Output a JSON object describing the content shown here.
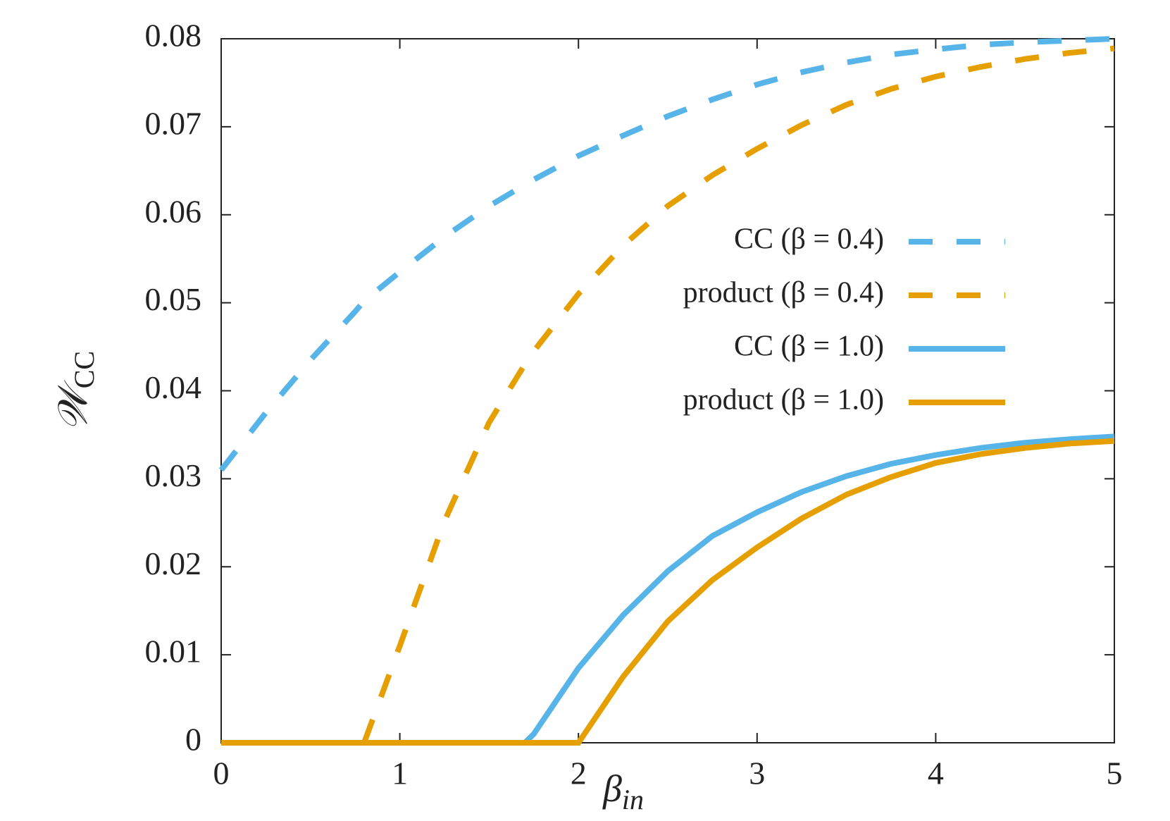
{
  "chart_data": {
    "type": "line",
    "xlabel": {
      "base": "β",
      "sub": "in"
    },
    "ylabel": {
      "base": "𝒲",
      "sub": "CC"
    },
    "x": [
      0,
      0.25,
      0.5,
      0.75,
      0.8,
      1,
      1.25,
      1.5,
      1.7,
      1.75,
      2,
      2.25,
      2.5,
      2.75,
      3,
      3.25,
      3.5,
      3.75,
      4,
      4.25,
      4.5,
      4.75,
      5
    ],
    "series": [
      {
        "name": "CC (β = 0.4)",
        "color": "#56b4e9",
        "dashed": true,
        "values": [
          0.031,
          0.0375,
          0.0435,
          0.049,
          0.0502,
          0.0535,
          0.0575,
          0.061,
          0.0634,
          0.064,
          0.0667,
          0.069,
          0.0712,
          0.0731,
          0.0748,
          0.0762,
          0.0773,
          0.0782,
          0.0788,
          0.0793,
          0.0796,
          0.0798,
          0.08
        ]
      },
      {
        "name": "product (β = 0.4)",
        "color": "#e69f00",
        "dashed": true,
        "values": [
          0,
          0,
          0,
          0,
          0,
          0.011,
          0.0252,
          0.0364,
          0.043,
          0.0445,
          0.051,
          0.0565,
          0.061,
          0.0645,
          0.0675,
          0.0702,
          0.0725,
          0.0743,
          0.0757,
          0.0768,
          0.0777,
          0.0784,
          0.0789
        ]
      },
      {
        "name": "CC (β = 1.0)",
        "color": "#56b4e9",
        "dashed": false,
        "values": [
          0,
          0,
          0,
          0,
          0,
          0,
          0,
          0,
          0,
          0.001,
          0.0085,
          0.0145,
          0.0195,
          0.0235,
          0.0262,
          0.0285,
          0.0303,
          0.0317,
          0.0327,
          0.0335,
          0.0341,
          0.0345,
          0.0348
        ]
      },
      {
        "name": "product (β = 1.0)",
        "color": "#e69f00",
        "dashed": false,
        "values": [
          0,
          0,
          0,
          0,
          0,
          0,
          0,
          0,
          0,
          0,
          0,
          0.0075,
          0.0138,
          0.0185,
          0.0222,
          0.0255,
          0.0282,
          0.0302,
          0.0318,
          0.0328,
          0.0335,
          0.034,
          0.0343
        ]
      }
    ],
    "xlim": [
      0,
      5
    ],
    "xticks": [
      0,
      1,
      2,
      3,
      4,
      5
    ],
    "ylim": [
      0,
      0.08
    ],
    "yticks": [
      0,
      0.01,
      0.02,
      0.03,
      0.04,
      0.05,
      0.06,
      0.07,
      0.08
    ],
    "legend": "right"
  }
}
